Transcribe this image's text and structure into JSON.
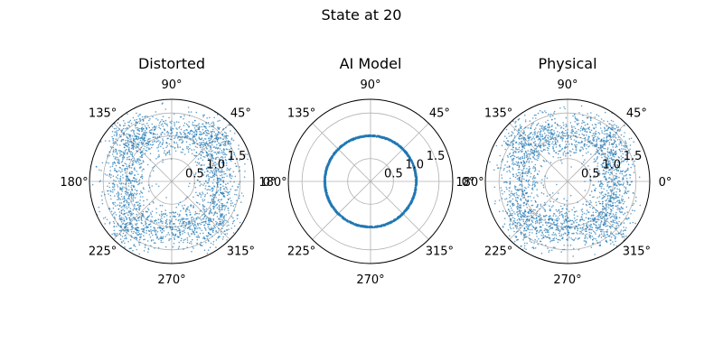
{
  "figure": {
    "suptitle": "State at 20"
  },
  "colors": {
    "points": "#1f77b4",
    "grid": "#b0b0b0",
    "frame": "#000000"
  },
  "chart_data": [
    {
      "type": "scatter",
      "projection": "polar",
      "title": "Distorted",
      "theta_ticks_deg": [
        0,
        45,
        90,
        135,
        180,
        225,
        270,
        315
      ],
      "theta_tick_labels": [
        "0°",
        "45°",
        "90°",
        "135°",
        "180°",
        "225°",
        "270°",
        "315°"
      ],
      "r_ticks": [
        0.5,
        1.0,
        1.5
      ],
      "r_tick_labels": [
        "0.5",
        "1.0",
        "1.5"
      ],
      "rlim": [
        0,
        1.8
      ],
      "grid": true,
      "distribution": {
        "shape": "noisy_square",
        "half_width": 1.0,
        "noise_sd": 0.25,
        "n_points": 2500
      }
    },
    {
      "type": "scatter",
      "projection": "polar",
      "title": "AI Model",
      "theta_ticks_deg": [
        0,
        45,
        90,
        135,
        180,
        225,
        270,
        315
      ],
      "theta_tick_labels": [
        "0°",
        "45°",
        "90°",
        "135°",
        "180°",
        "225°",
        "270°",
        "315°"
      ],
      "r_ticks": [
        0.5,
        1.0,
        1.5
      ],
      "r_tick_labels": [
        "0.5",
        "1.0",
        "1.5"
      ],
      "rlim": [
        0,
        1.8
      ],
      "grid": true,
      "distribution": {
        "shape": "ring",
        "radius": 1.0,
        "width": 0.04,
        "n_points": 2500
      }
    },
    {
      "type": "scatter",
      "projection": "polar",
      "title": "Physical",
      "theta_ticks_deg": [
        0,
        45,
        90,
        135,
        180,
        225,
        270,
        315
      ],
      "theta_tick_labels": [
        "0°",
        "45°",
        "90°",
        "135°",
        "180°",
        "225°",
        "270°",
        "315°"
      ],
      "r_ticks": [
        0.5,
        1.0,
        1.5
      ],
      "r_tick_labels": [
        "0.5",
        "1.0",
        "1.5"
      ],
      "rlim": [
        0,
        1.8
      ],
      "grid": true,
      "distribution": {
        "shape": "noisy_square",
        "half_width": 1.0,
        "noise_sd": 0.25,
        "n_points": 2500
      }
    }
  ]
}
